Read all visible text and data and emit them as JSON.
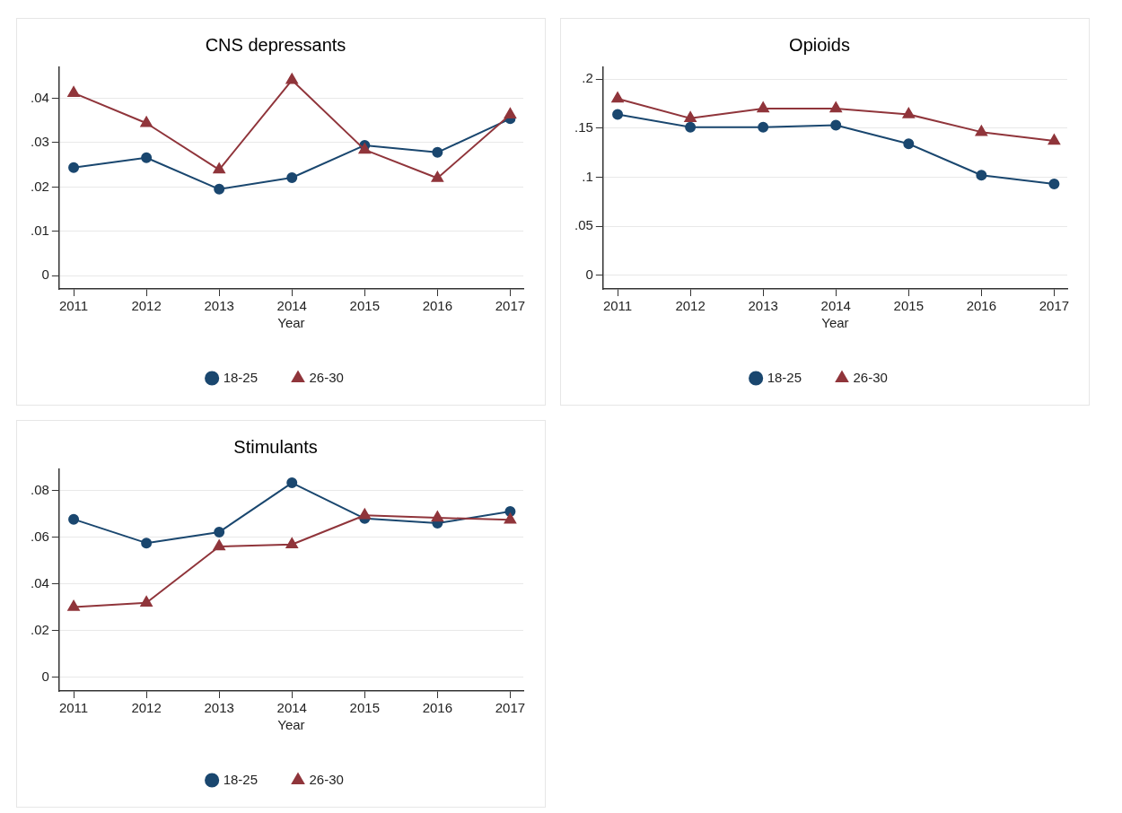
{
  "chart_data": [
    {
      "type": "line",
      "title": "CNS depressants",
      "xlabel": "Year",
      "x": [
        2011,
        2012,
        2013,
        2014,
        2015,
        2016,
        2017
      ],
      "xlim": [
        2010.8,
        2017.18
      ],
      "xticks": [
        2011,
        2012,
        2013,
        2014,
        2015,
        2016,
        2017
      ],
      "ylim": [
        -0.003,
        0.047
      ],
      "yticks": [
        {
          "value": 0,
          "label": "0"
        },
        {
          "value": 0.01,
          "label": ".01"
        },
        {
          "value": 0.02,
          "label": ".02"
        },
        {
          "value": 0.03,
          "label": ".03"
        },
        {
          "value": 0.04,
          "label": ".04"
        }
      ],
      "grid": "y",
      "legend": "bottom",
      "series": [
        {
          "name": "18-25",
          "color": "#1a476f",
          "marker": "circle",
          "values": [
            0.0244,
            0.0266,
            0.0195,
            0.0221,
            0.0294,
            0.0278,
            0.0354
          ]
        },
        {
          "name": "26-30",
          "color": "#90353b",
          "marker": "triangle",
          "values": [
            0.0412,
            0.0344,
            0.0239,
            0.0441,
            0.0284,
            0.022,
            0.0363
          ]
        }
      ]
    },
    {
      "type": "line",
      "title": "Opioids",
      "xlabel": "Year",
      "x": [
        2011,
        2012,
        2013,
        2014,
        2015,
        2016,
        2017
      ],
      "xlim": [
        2010.8,
        2017.18
      ],
      "xticks": [
        2011,
        2012,
        2013,
        2014,
        2015,
        2016,
        2017
      ],
      "ylim": [
        -0.014,
        0.212
      ],
      "yticks": [
        {
          "value": 0,
          "label": "0"
        },
        {
          "value": 0.05,
          "label": ".05"
        },
        {
          "value": 0.1,
          "label": ".1"
        },
        {
          "value": 0.15,
          "label": ".15"
        },
        {
          "value": 0.2,
          "label": ".2"
        }
      ],
      "grid": "y",
      "legend": "bottom",
      "series": [
        {
          "name": "18-25",
          "color": "#1a476f",
          "marker": "circle",
          "values": [
            0.164,
            0.151,
            0.151,
            0.153,
            0.134,
            0.102,
            0.093
          ]
        },
        {
          "name": "26-30",
          "color": "#90353b",
          "marker": "triangle",
          "values": [
            0.18,
            0.16,
            0.17,
            0.17,
            0.164,
            0.146,
            0.137
          ]
        }
      ]
    },
    {
      "type": "line",
      "title": "Stimulants",
      "xlabel": "Year",
      "x": [
        2011,
        2012,
        2013,
        2014,
        2015,
        2016,
        2017
      ],
      "xlim": [
        2010.8,
        2017.18
      ],
      "xticks": [
        2011,
        2012,
        2013,
        2014,
        2015,
        2016,
        2017
      ],
      "ylim": [
        -0.006,
        0.089
      ],
      "yticks": [
        {
          "value": 0,
          "label": "0"
        },
        {
          "value": 0.02,
          "label": ".02"
        },
        {
          "value": 0.04,
          "label": ".04"
        },
        {
          "value": 0.06,
          "label": ".06"
        },
        {
          "value": 0.08,
          "label": ".08"
        }
      ],
      "grid": "y",
      "legend": "bottom",
      "series": [
        {
          "name": "18-25",
          "color": "#1a476f",
          "marker": "circle",
          "values": [
            0.0676,
            0.0574,
            0.0621,
            0.0832,
            0.0679,
            0.0659,
            0.0709
          ]
        },
        {
          "name": "26-30",
          "color": "#90353b",
          "marker": "triangle",
          "values": [
            0.03,
            0.0318,
            0.0559,
            0.0568,
            0.0693,
            0.0682,
            0.0674
          ]
        }
      ]
    }
  ]
}
